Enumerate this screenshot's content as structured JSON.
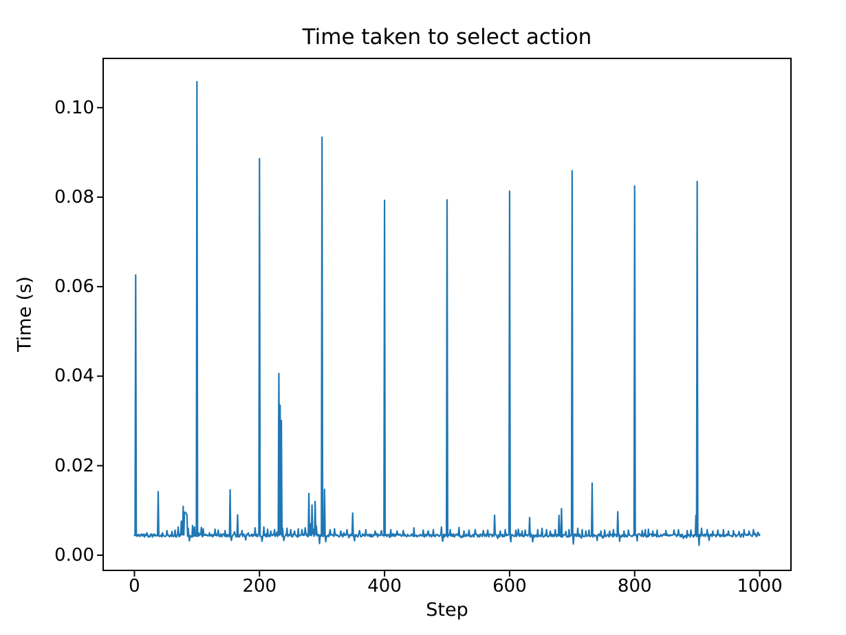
{
  "chart_data": {
    "type": "line",
    "title": "Time taken to select action",
    "xlabel": "Step",
    "ylabel": "Time (s)",
    "x_ticks": [
      0,
      200,
      400,
      600,
      800,
      1000
    ],
    "x_tick_labels": [
      "0",
      "200",
      "400",
      "600",
      "800",
      "1000"
    ],
    "y_ticks": [
      0.0,
      0.02,
      0.04,
      0.06,
      0.08,
      0.1
    ],
    "y_tick_labels": [
      "0.00",
      "0.02",
      "0.04",
      "0.06",
      "0.08",
      "0.10"
    ],
    "xlim": [
      -50,
      1050
    ],
    "ylim": [
      -0.0034,
      0.111
    ],
    "n_points": 1001,
    "line_color": "#1f77b4",
    "axis_color": "#000000",
    "grid": false,
    "legend": false,
    "baseline": {
      "mean": 0.0044,
      "noise": 0.00035
    },
    "major_spikes": [
      [
        2,
        0.0626
      ],
      [
        100,
        0.1058
      ],
      [
        200,
        0.0886
      ],
      [
        300,
        0.0934
      ],
      [
        400,
        0.0793
      ],
      [
        500,
        0.0794
      ],
      [
        600,
        0.0813
      ],
      [
        700,
        0.0859
      ],
      [
        800,
        0.0825
      ],
      [
        900,
        0.0835
      ]
    ],
    "minor_features": [
      [
        20,
        0.005
      ],
      [
        38,
        0.0142
      ],
      [
        45,
        0.005
      ],
      [
        52,
        0.0055
      ],
      [
        60,
        0.0053
      ],
      [
        65,
        0.0056
      ],
      [
        70,
        0.0063
      ],
      [
        75,
        0.0076
      ],
      [
        78,
        0.0109
      ],
      [
        80,
        0.0094
      ],
      [
        81,
        0.0096
      ],
      [
        82,
        0.0095
      ],
      [
        83,
        0.0093
      ],
      [
        84,
        0.009
      ],
      [
        86,
        0.006
      ],
      [
        88,
        0.0032
      ],
      [
        93,
        0.0066
      ],
      [
        96,
        0.0063
      ],
      [
        103,
        0.005
      ],
      [
        107,
        0.0062
      ],
      [
        110,
        0.0059
      ],
      [
        120,
        0.005
      ],
      [
        129,
        0.0058
      ],
      [
        134,
        0.0056
      ],
      [
        145,
        0.0055
      ],
      [
        153,
        0.0146
      ],
      [
        155,
        0.0033
      ],
      [
        160,
        0.0052
      ],
      [
        165,
        0.009
      ],
      [
        172,
        0.0055
      ],
      [
        178,
        0.0034
      ],
      [
        182,
        0.005
      ],
      [
        193,
        0.0061
      ],
      [
        204,
        0.0031
      ],
      [
        207,
        0.0063
      ],
      [
        213,
        0.0058
      ],
      [
        218,
        0.0054
      ],
      [
        224,
        0.0057
      ],
      [
        228,
        0.0052
      ],
      [
        231,
        0.0406
      ],
      [
        233,
        0.0335
      ],
      [
        235,
        0.0301
      ],
      [
        237,
        0.006
      ],
      [
        239,
        0.0033
      ],
      [
        244,
        0.006
      ],
      [
        250,
        0.0057
      ],
      [
        256,
        0.0054
      ],
      [
        262,
        0.0059
      ],
      [
        268,
        0.0057
      ],
      [
        273,
        0.0061
      ],
      [
        279,
        0.0138
      ],
      [
        282,
        0.007
      ],
      [
        284,
        0.0112
      ],
      [
        286,
        0.0058
      ],
      [
        289,
        0.012
      ],
      [
        291,
        0.0065
      ],
      [
        296,
        0.0026
      ],
      [
        304,
        0.0147
      ],
      [
        306,
        0.003
      ],
      [
        313,
        0.0057
      ],
      [
        320,
        0.0059
      ],
      [
        330,
        0.0054
      ],
      [
        340,
        0.0057
      ],
      [
        349,
        0.0094
      ],
      [
        352,
        0.0032
      ],
      [
        360,
        0.0055
      ],
      [
        370,
        0.0057
      ],
      [
        385,
        0.0054
      ],
      [
        395,
        0.0055
      ],
      [
        410,
        0.0057
      ],
      [
        420,
        0.0054
      ],
      [
        430,
        0.0055
      ],
      [
        447,
        0.0061
      ],
      [
        462,
        0.0056
      ],
      [
        470,
        0.0054
      ],
      [
        478,
        0.0057
      ],
      [
        491,
        0.0063
      ],
      [
        493,
        0.0031
      ],
      [
        505,
        0.0057
      ],
      [
        519,
        0.0062
      ],
      [
        527,
        0.0054
      ],
      [
        535,
        0.0056
      ],
      [
        545,
        0.0057
      ],
      [
        558,
        0.0055
      ],
      [
        565,
        0.0056
      ],
      [
        576,
        0.0089
      ],
      [
        585,
        0.0054
      ],
      [
        593,
        0.0057
      ],
      [
        602,
        0.003
      ],
      [
        610,
        0.0056
      ],
      [
        614,
        0.0058
      ],
      [
        620,
        0.0054
      ],
      [
        625,
        0.0056
      ],
      [
        632,
        0.0084
      ],
      [
        637,
        0.003
      ],
      [
        645,
        0.0057
      ],
      [
        652,
        0.006
      ],
      [
        659,
        0.0057
      ],
      [
        665,
        0.0054
      ],
      [
        673,
        0.0057
      ],
      [
        679,
        0.0089
      ],
      [
        683,
        0.0104
      ],
      [
        690,
        0.0053
      ],
      [
        695,
        0.0057
      ],
      [
        702,
        0.0025
      ],
      [
        709,
        0.006
      ],
      [
        716,
        0.0057
      ],
      [
        722,
        0.0054
      ],
      [
        727,
        0.0056
      ],
      [
        732,
        0.0161
      ],
      [
        740,
        0.0033
      ],
      [
        746,
        0.0054
      ],
      [
        752,
        0.0056
      ],
      [
        760,
        0.0054
      ],
      [
        766,
        0.0057
      ],
      [
        773,
        0.0097
      ],
      [
        776,
        0.0031
      ],
      [
        783,
        0.0054
      ],
      [
        790,
        0.0056
      ],
      [
        804,
        0.0032
      ],
      [
        812,
        0.0055
      ],
      [
        817,
        0.0057
      ],
      [
        822,
        0.0058
      ],
      [
        829,
        0.0054
      ],
      [
        836,
        0.0056
      ],
      [
        850,
        0.0055
      ],
      [
        863,
        0.0056
      ],
      [
        870,
        0.0057
      ],
      [
        884,
        0.0055
      ],
      [
        890,
        0.0056
      ],
      [
        898,
        0.0089
      ],
      [
        903,
        0.0022
      ],
      [
        907,
        0.006
      ],
      [
        916,
        0.0057
      ],
      [
        919,
        0.0033
      ],
      [
        925,
        0.0054
      ],
      [
        933,
        0.0056
      ],
      [
        942,
        0.0057
      ],
      [
        950,
        0.0054
      ],
      [
        958,
        0.0055
      ],
      [
        967,
        0.0053
      ],
      [
        975,
        0.0057
      ],
      [
        983,
        0.0054
      ],
      [
        990,
        0.0057
      ],
      [
        997,
        0.0051
      ],
      [
        1000,
        0.0046
      ]
    ]
  }
}
